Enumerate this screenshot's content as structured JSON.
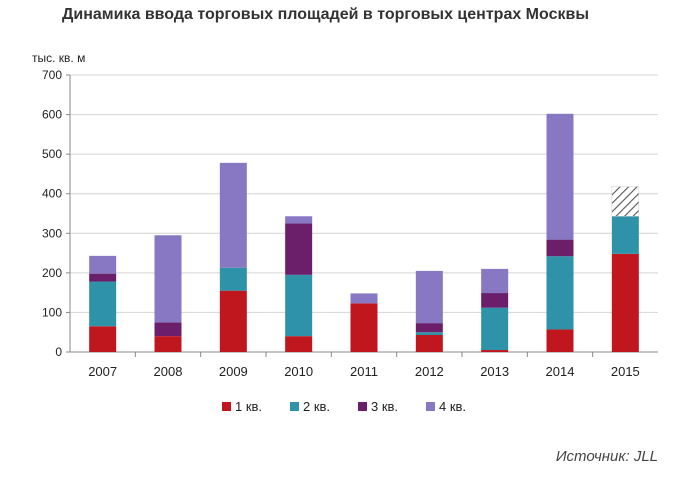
{
  "chart_data": {
    "type": "bar",
    "stacked": true,
    "title": "Динамика ввода торговых площадей в торговых центрах Москвы",
    "ylabel": "тыс. кв. м",
    "xlabel": "",
    "ylim": [
      0,
      700
    ],
    "yticks": [
      0,
      100,
      200,
      300,
      400,
      500,
      600,
      700
    ],
    "grid": true,
    "legend_position": "bottom",
    "categories": [
      "2007",
      "2008",
      "2009",
      "2010",
      "2011",
      "2012",
      "2013",
      "2014",
      "2015"
    ],
    "series": [
      {
        "name": "1 кв.",
        "color": "#c0161d",
        "values": [
          65,
          40,
          155,
          40,
          123,
          43,
          5,
          57,
          248
        ]
      },
      {
        "name": "2 кв.",
        "color": "#2e93a8",
        "values": [
          113,
          0,
          58,
          155,
          0,
          7,
          107,
          185,
          95
        ]
      },
      {
        "name": "3 кв.",
        "color": "#6b1f6b",
        "values": [
          20,
          35,
          0,
          130,
          0,
          23,
          37,
          42,
          0
        ]
      },
      {
        "name": "4 кв.",
        "color": "#8878c4",
        "values": [
          45,
          220,
          265,
          18,
          25,
          132,
          61,
          318,
          0
        ]
      }
    ],
    "forecast": {
      "category": "2015",
      "bottom": 343,
      "top": 418,
      "pattern": "hatched"
    }
  },
  "source_text": "Источник: JLL"
}
